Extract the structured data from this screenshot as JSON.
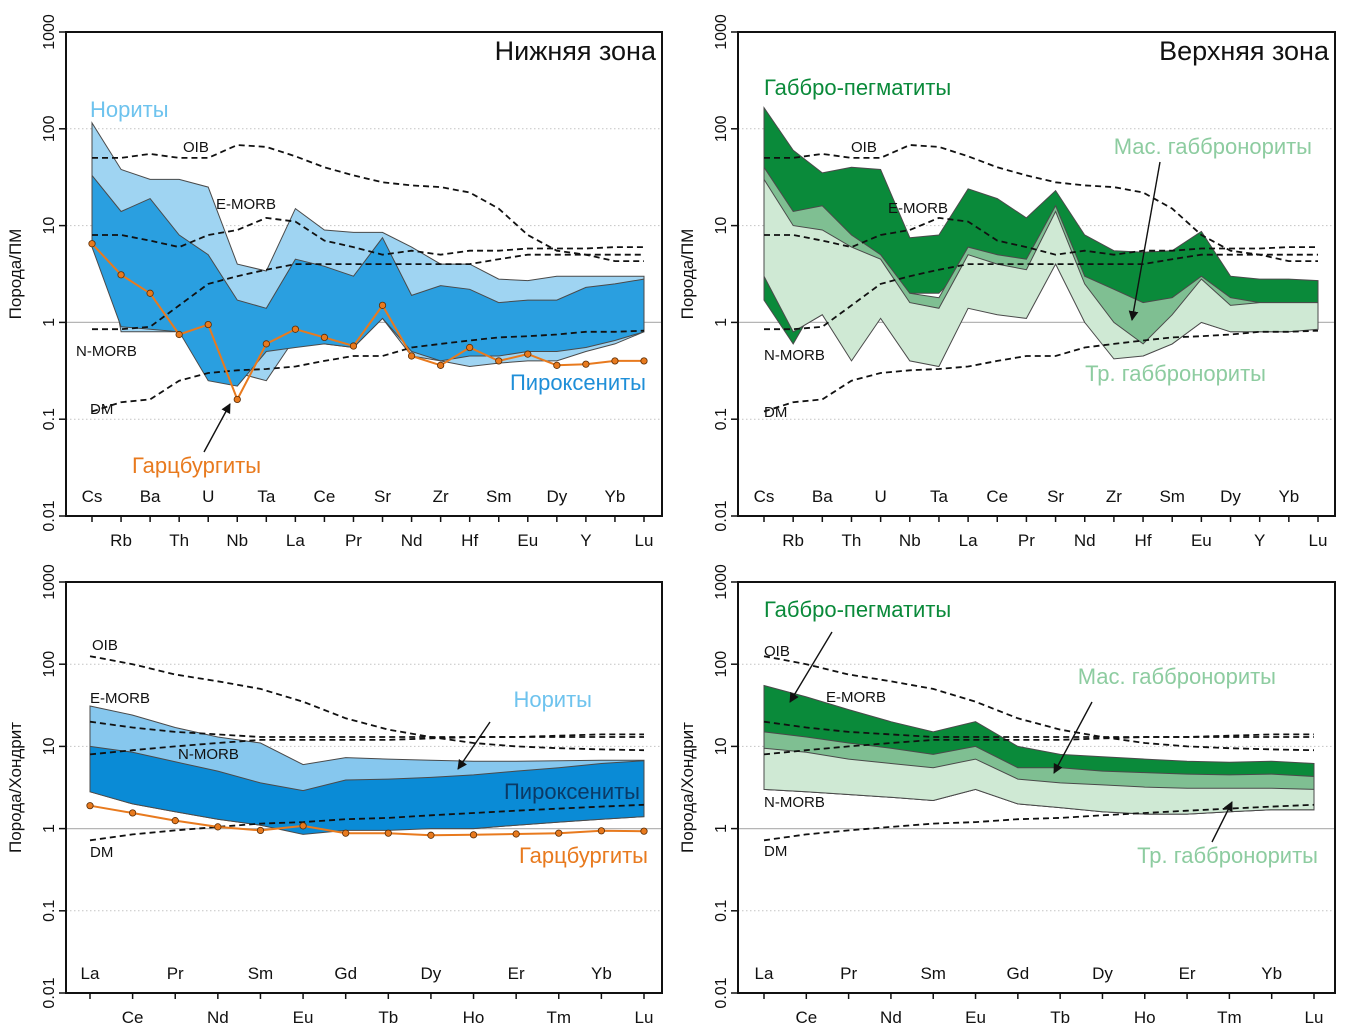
{
  "chart_data": [
    {
      "id": "tl",
      "type": "area",
      "title": "Нижняя зона",
      "ylabel": "Порода/ПМ",
      "y_scale": "log",
      "ylim": [
        0.01,
        1000
      ],
      "y_ticks": [
        "0.01",
        "0.1",
        "1",
        "10",
        "100",
        "1000"
      ],
      "categories": [
        "Cs",
        "Rb",
        "Ba",
        "Th",
        "U",
        "Nb",
        "Ta",
        "La",
        "Ce",
        "Pr",
        "Sr",
        "Nd",
        "Zr",
        "Hf",
        "Sm",
        "Eu",
        "Dy",
        "Y",
        "Yb",
        "Lu"
      ],
      "bands": [
        {
          "name": "Нориты",
          "color": "#9fd4f2",
          "upper": [
            115,
            38,
            30,
            30,
            25,
            4,
            3.4,
            15,
            9,
            8.5,
            8.5,
            6,
            4,
            4,
            2.8,
            2.7,
            3,
            3,
            3,
            3
          ],
          "lower": [
            33,
            0.8,
            0.8,
            0.8,
            0.9,
            0.3,
            0.25,
            0.7,
            0.6,
            0.55,
            1.1,
            0.45,
            0.4,
            0.35,
            0.38,
            0.4,
            0.4,
            0.5,
            0.6,
            0.8
          ]
        },
        {
          "name": "Пироксениты",
          "color": "#2a9fe0",
          "upper": [
            33,
            14,
            19,
            8,
            5,
            1.7,
            1.4,
            4.5,
            3.8,
            3,
            7.5,
            1.9,
            2.4,
            2.2,
            1.6,
            1.7,
            1.7,
            2.3,
            2.5,
            2.8
          ],
          "lower": [
            6,
            0.9,
            0.85,
            0.8,
            0.25,
            0.22,
            0.5,
            0.55,
            0.6,
            0.55,
            1.1,
            0.5,
            0.4,
            0.45,
            0.45,
            0.5,
            0.5,
            0.55,
            0.65,
            0.8
          ]
        }
      ],
      "series": [
        {
          "name": "Гарцбургиты",
          "color": "#e87a1e",
          "values": [
            6.5,
            3.1,
            2,
            0.75,
            0.95,
            0.16,
            0.6,
            0.85,
            0.7,
            0.57,
            1.5,
            0.45,
            0.36,
            0.55,
            0.4,
            0.47,
            0.36,
            0.37,
            0.4,
            0.4
          ]
        }
      ],
      "references": [
        {
          "name": "OIB",
          "values": [
            50,
            50,
            55,
            50,
            50,
            68,
            65,
            52,
            40,
            33,
            28,
            26,
            25,
            22,
            15,
            8,
            5.5,
            5,
            4.3,
            4.3
          ]
        },
        {
          "name": "E-MORB",
          "values": [
            8,
            8,
            7,
            6,
            8,
            9,
            12,
            11,
            7,
            6,
            5,
            5.5,
            5,
            5.5,
            5.5,
            5.8,
            5.8,
            5.8,
            6,
            6
          ]
        },
        {
          "name": "N-MORB",
          "values": [
            0.85,
            0.85,
            0.9,
            1.5,
            2.5,
            3,
            3.5,
            4,
            4,
            4,
            4,
            4,
            4,
            4,
            4.5,
            5,
            5,
            5,
            5,
            5
          ]
        },
        {
          "name": "DM",
          "values": [
            0.12,
            0.15,
            0.16,
            0.25,
            0.3,
            0.32,
            0.33,
            0.35,
            0.4,
            0.45,
            0.45,
            0.55,
            0.6,
            0.65,
            0.7,
            0.72,
            0.75,
            0.8,
            0.8,
            0.82
          ]
        }
      ],
      "labels": {
        "band_0": "Нориты",
        "band_1": "Пироксениты",
        "series_0": "Гарцбургиты",
        "ref_0": "OIB",
        "ref_1": "E-MORB",
        "ref_2": "N-MORB",
        "ref_3": "DM"
      }
    },
    {
      "id": "tr",
      "type": "area",
      "title": "Верхняя зона",
      "ylabel": "Порода/ПМ",
      "y_scale": "log",
      "ylim": [
        0.01,
        1000
      ],
      "y_ticks": [
        "0.01",
        "0.1",
        "1",
        "10",
        "100",
        "1000"
      ],
      "categories": [
        "Cs",
        "Rb",
        "Ba",
        "Th",
        "U",
        "Nb",
        "Ta",
        "La",
        "Ce",
        "Pr",
        "Sr",
        "Nd",
        "Zr",
        "Hf",
        "Sm",
        "Eu",
        "Dy",
        "Y",
        "Yb",
        "Lu"
      ],
      "bands": [
        {
          "name": "Габбро-пегматиты",
          "color": "#0a8a3a",
          "upper": [
            165,
            60,
            35,
            40,
            38,
            7.5,
            8,
            24,
            19,
            12,
            23,
            8,
            5.5,
            5.3,
            5.5,
            8.7,
            3,
            2.8,
            2.8,
            2.7
          ],
          "lower": [
            1.7,
            0.6,
            2,
            3,
            1.5,
            2,
            2,
            4,
            3,
            3,
            4,
            2,
            1.2,
            1,
            1.2,
            2,
            1.2,
            1.1,
            1.1,
            1.1
          ]
        },
        {
          "name": "Мас. габбронориты",
          "color": "#7fbf92",
          "upper": [
            40,
            14,
            16,
            8,
            5,
            2,
            1.8,
            6,
            5,
            4.5,
            16,
            3,
            2.2,
            1.6,
            1.8,
            3,
            1.8,
            1.6,
            1.6,
            1.6
          ],
          "lower": [
            7,
            0.8,
            1.2,
            0.7,
            1.2,
            0.5,
            0.6,
            1.6,
            1.3,
            1.2,
            5,
            1,
            0.5,
            0.45,
            0.6,
            1,
            0.8,
            0.8,
            0.8,
            0.85
          ]
        },
        {
          "name": "Тр. габбронориты",
          "color": "#cfe9d4",
          "upper": [
            30,
            10,
            9,
            6,
            4.5,
            1.6,
            1.4,
            5,
            4,
            3.5,
            14,
            2.5,
            1,
            0.6,
            1.2,
            2.8,
            1.5,
            1.6,
            1.6,
            1.6
          ],
          "lower": [
            3,
            0.8,
            1.2,
            0.4,
            1.1,
            0.4,
            0.35,
            1.4,
            1.2,
            1.1,
            4,
            1,
            0.42,
            0.45,
            0.6,
            1,
            0.8,
            0.8,
            0.8,
            0.85
          ]
        }
      ],
      "series": [],
      "references": [
        {
          "name": "OIB",
          "values": [
            50,
            50,
            55,
            50,
            50,
            68,
            65,
            52,
            40,
            33,
            28,
            26,
            25,
            22,
            15,
            8,
            5.5,
            5,
            4.3,
            4.3
          ]
        },
        {
          "name": "E-MORB",
          "values": [
            8,
            8,
            7,
            6,
            8,
            9,
            12,
            11,
            7,
            6,
            5,
            5.5,
            5,
            5.5,
            5.5,
            5.8,
            5.8,
            5.8,
            6,
            6
          ]
        },
        {
          "name": "N-MORB",
          "values": [
            0.85,
            0.85,
            0.9,
            1.5,
            2.5,
            3,
            3.5,
            4,
            4,
            4,
            4,
            4,
            4,
            4,
            4.5,
            5,
            5,
            5,
            5,
            5
          ]
        },
        {
          "name": "DM",
          "values": [
            0.12,
            0.15,
            0.16,
            0.25,
            0.3,
            0.32,
            0.33,
            0.35,
            0.4,
            0.45,
            0.45,
            0.55,
            0.6,
            0.65,
            0.7,
            0.72,
            0.75,
            0.8,
            0.8,
            0.82
          ]
        }
      ],
      "labels": {
        "band_0": "Габбро-пегматиты",
        "band_1": "Мас. габбронориты",
        "band_2": "Тр. габбронориты",
        "ref_0": "OIB",
        "ref_1": "E-MORB",
        "ref_2": "N-MORB",
        "ref_3": "DM"
      }
    },
    {
      "id": "bl",
      "type": "area",
      "title": "",
      "ylabel": "Порода/Хондрит",
      "y_scale": "log",
      "ylim": [
        0.01,
        1000
      ],
      "y_ticks": [
        "0.01",
        "0.1",
        "1",
        "10",
        "100",
        "1000"
      ],
      "categories": [
        "La",
        "Ce",
        "Pr",
        "Nd",
        "Sm",
        "Eu",
        "Gd",
        "Tb",
        "Dy",
        "Ho",
        "Er",
        "Tm",
        "Yb",
        "Lu"
      ],
      "bands": [
        {
          "name": "Нориты",
          "color": "#86c7ee",
          "upper": [
            31,
            24,
            17,
            13,
            11,
            6,
            7.3,
            7,
            6.8,
            6.6,
            6.6,
            6.7,
            6.8,
            6.8
          ],
          "lower": [
            2.8,
            2,
            1.6,
            1.3,
            1.1,
            0.9,
            1,
            1,
            1,
            1,
            1.1,
            1.2,
            1.3,
            1.4
          ]
        },
        {
          "name": "Пироксениты",
          "color": "#0a8bd6",
          "upper": [
            10,
            8.5,
            6.5,
            5,
            3.6,
            2.9,
            3.9,
            4,
            4.2,
            4.5,
            5,
            5.5,
            6.2,
            6.7
          ],
          "lower": [
            2.8,
            2,
            1.6,
            1.3,
            1.1,
            0.85,
            0.95,
            0.95,
            1,
            1,
            1.1,
            1.2,
            1.3,
            1.4
          ]
        }
      ],
      "series": [
        {
          "name": "Гарцбургиты",
          "color": "#e87a1e",
          "values": [
            1.9,
            1.55,
            1.25,
            1.05,
            0.95,
            1.08,
            0.88,
            0.88,
            0.83,
            0.84,
            0.86,
            0.88,
            0.94,
            0.93
          ]
        }
      ],
      "references": [
        {
          "name": "OIB",
          "values": [
            125,
            100,
            75,
            62,
            50,
            35,
            22,
            16,
            13,
            11,
            10,
            9.5,
            9.2,
            9
          ]
        },
        {
          "name": "E-MORB",
          "values": [
            20,
            17,
            15,
            14,
            13,
            13,
            13,
            13,
            13,
            13,
            13,
            13,
            13,
            13
          ]
        },
        {
          "name": "N-MORB",
          "values": [
            8,
            9,
            10,
            11,
            12,
            12,
            12,
            12,
            12.5,
            13,
            13,
            13.5,
            14,
            14
          ]
        },
        {
          "name": "DM",
          "values": [
            0.72,
            0.85,
            0.95,
            1.05,
            1.15,
            1.2,
            1.3,
            1.35,
            1.45,
            1.55,
            1.65,
            1.75,
            1.85,
            1.95
          ]
        }
      ],
      "labels": {
        "band_0": "Нориты",
        "band_1": "Пироксениты",
        "series_0": "Гарцбургиты",
        "ref_0": "OIB",
        "ref_1": "E-MORB",
        "ref_2": "N-MORB",
        "ref_3": "DM"
      }
    },
    {
      "id": "br",
      "type": "area",
      "title": "",
      "ylabel": "Порода/Хондрит",
      "y_scale": "log",
      "ylim": [
        0.01,
        1000
      ],
      "y_ticks": [
        "0.01",
        "0.1",
        "1",
        "10",
        "100",
        "1000"
      ],
      "categories": [
        "La",
        "Ce",
        "Pr",
        "Nd",
        "Sm",
        "Eu",
        "Gd",
        "Tb",
        "Dy",
        "Ho",
        "Er",
        "Tm",
        "Yb",
        "Lu"
      ],
      "bands": [
        {
          "name": "Габбро-пегматиты",
          "color": "#0a8a3a",
          "upper": [
            55,
            40,
            28,
            20,
            15,
            20,
            10,
            8,
            7.5,
            7,
            6.6,
            6.4,
            6.6,
            6.2
          ],
          "lower": [
            3,
            2.8,
            2.6,
            2.4,
            2.2,
            3,
            2,
            1.8,
            1.6,
            1.5,
            1.5,
            1.6,
            1.7,
            1.7
          ]
        },
        {
          "name": "Мас. габбронориты",
          "color": "#7fbf92",
          "upper": [
            15,
            13,
            11,
            9.5,
            8,
            10,
            5.5,
            5.5,
            5,
            4.8,
            4.6,
            4.5,
            4.6,
            4.3
          ]
        },
        {
          "name": "Тр. габбронориты",
          "color": "#cfe9d4",
          "upper": [
            9.5,
            8.5,
            7,
            6.2,
            5.5,
            7,
            4,
            3.6,
            3.4,
            3.2,
            3.1,
            3.1,
            3.1,
            3
          ]
        }
      ],
      "series": [],
      "references": [
        {
          "name": "OIB",
          "values": [
            125,
            100,
            75,
            62,
            50,
            35,
            22,
            16,
            13,
            11,
            10,
            9.5,
            9.2,
            9
          ]
        },
        {
          "name": "E-MORB",
          "values": [
            20,
            17,
            15,
            14,
            13,
            13,
            13,
            13,
            13,
            13,
            13,
            13,
            13,
            13
          ]
        },
        {
          "name": "N-MORB",
          "values": [
            8,
            9,
            10,
            11,
            12,
            12,
            12,
            12,
            12.5,
            13,
            13,
            13.5,
            14,
            14
          ]
        },
        {
          "name": "DM",
          "values": [
            0.72,
            0.85,
            0.95,
            1.05,
            1.15,
            1.2,
            1.3,
            1.35,
            1.45,
            1.55,
            1.65,
            1.75,
            1.85,
            1.95
          ]
        }
      ],
      "labels": {
        "band_0": "Габбро-пегматиты",
        "band_1": "Мас. габбронориты",
        "band_2": "Тр. габбронориты",
        "ref_0": "OIB",
        "ref_1": "E-MORB",
        "ref_2": "N-MORB",
        "ref_3": "DM"
      }
    }
  ]
}
